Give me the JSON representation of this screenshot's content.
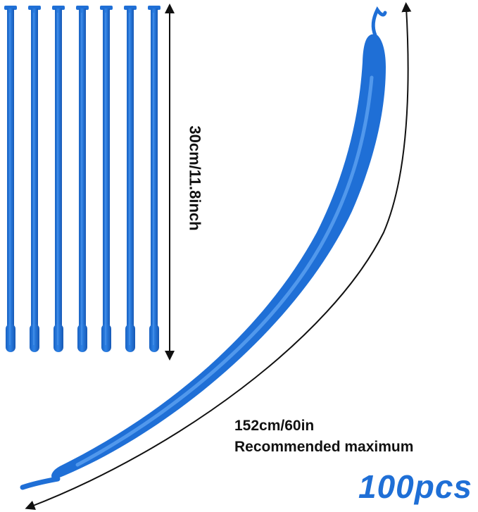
{
  "product": {
    "color": "#1f6fd6",
    "color_highlight": "#5aa0f0",
    "uninflated_count_shown": 7
  },
  "labels": {
    "uninflated_length": "30cm/11.8inch",
    "inflated_length": "152cm/60in",
    "inflated_note": "Recommended maximum",
    "quantity": "100pcs"
  }
}
